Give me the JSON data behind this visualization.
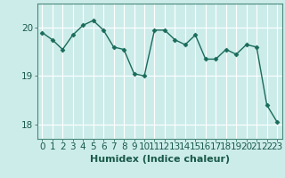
{
  "x": [
    0,
    1,
    2,
    3,
    4,
    5,
    6,
    7,
    8,
    9,
    10,
    11,
    12,
    13,
    14,
    15,
    16,
    17,
    18,
    19,
    20,
    21,
    22,
    23
  ],
  "y": [
    19.9,
    19.75,
    19.55,
    19.85,
    20.05,
    20.15,
    19.95,
    19.6,
    19.55,
    19.05,
    19.0,
    19.95,
    19.95,
    19.75,
    19.65,
    19.85,
    19.35,
    19.35,
    19.55,
    19.45,
    19.65,
    19.6,
    18.4,
    18.05
  ],
  "line_color": "#1a6b5a",
  "marker": "D",
  "marker_size": 2.5,
  "bg_color": "#ccecea",
  "grid_color": "#ffffff",
  "xlabel": "Humidex (Indice chaleur)",
  "ylim": [
    17.7,
    20.5
  ],
  "xlim": [
    -0.5,
    23.5
  ],
  "yticks": [
    18,
    19,
    20
  ],
  "xticks": [
    0,
    1,
    2,
    3,
    4,
    5,
    6,
    7,
    8,
    9,
    10,
    11,
    12,
    13,
    14,
    15,
    16,
    17,
    18,
    19,
    20,
    21,
    22,
    23
  ],
  "xlabel_fontsize": 8,
  "tick_fontsize": 7.5,
  "line_width": 1.0,
  "spine_color": "#4a8a7a"
}
